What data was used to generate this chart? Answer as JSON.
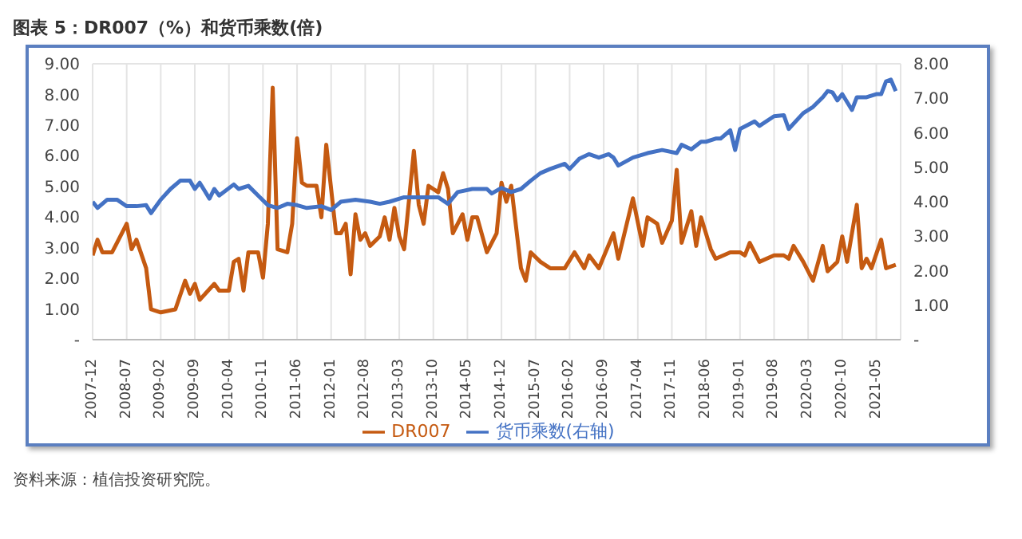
{
  "chart_data": {
    "type": "line",
    "title": "图表 5：DR007（%）和货币乘数(倍)",
    "annotations": [
      "资料来源：植信投资研究院。"
    ],
    "xlim": [
      "2007-12",
      "2021-10"
    ],
    "xticks": [
      "2007-12",
      "2008-07",
      "2009-02",
      "2009-09",
      "2010-04",
      "2010-11",
      "2011-06",
      "2012-01",
      "2012-08",
      "2013-03",
      "2013-10",
      "2014-05",
      "2014-12",
      "2015-07",
      "2016-02",
      "2016-09",
      "2017-04",
      "2017-11",
      "2018-06",
      "2019-01",
      "2019-08",
      "2020-03",
      "2020-10",
      "2021-05"
    ],
    "ylim": [
      0,
      9
    ],
    "yticks": [
      {
        "value": 0,
        "label": "-"
      },
      {
        "value": 1,
        "label": "1.00"
      },
      {
        "value": 2,
        "label": "2.00"
      },
      {
        "value": 3,
        "label": "3.00"
      },
      {
        "value": 4,
        "label": "4.00"
      },
      {
        "value": 5,
        "label": "5.00"
      },
      {
        "value": 6,
        "label": "6.00"
      },
      {
        "value": 7,
        "label": "7.00"
      },
      {
        "value": 8,
        "label": "8.00"
      },
      {
        "value": 9,
        "label": "9.00"
      }
    ],
    "y2lim": [
      0,
      8
    ],
    "y2ticks": [
      {
        "value": 0,
        "label": "-"
      },
      {
        "value": 1,
        "label": "1.00"
      },
      {
        "value": 2,
        "label": "2.00"
      },
      {
        "value": 3,
        "label": "3.00"
      },
      {
        "value": 4,
        "label": "4.00"
      },
      {
        "value": 5,
        "label": "5.00"
      },
      {
        "value": 6,
        "label": "6.00"
      },
      {
        "value": 7,
        "label": "7.00"
      },
      {
        "value": 8,
        "label": "8.00"
      }
    ],
    "grid": true,
    "legend": "bottom",
    "marker": "none",
    "line_style": "solid",
    "series": [
      {
        "name": "DR007",
        "color": "#c55a11",
        "x": [
          "2007-12",
          "2008-01",
          "2008-02",
          "2008-04",
          "2008-05",
          "2008-07",
          "2008-08",
          "2008-09",
          "2008-11",
          "2008-12",
          "2009-02",
          "2009-05",
          "2009-07",
          "2009-08",
          "2009-09",
          "2009-10",
          "2010-01",
          "2010-02",
          "2010-04",
          "2010-05",
          "2010-06",
          "2010-07",
          "2010-08",
          "2010-10",
          "2010-11",
          "2010-12",
          "2011-01",
          "2011-02",
          "2011-04",
          "2011-05",
          "2011-06",
          "2011-07",
          "2011-08",
          "2011-10",
          "2011-11",
          "2011-12",
          "2012-02",
          "2012-03",
          "2012-04",
          "2012-05",
          "2012-06",
          "2012-07",
          "2012-08",
          "2012-09",
          "2012-11",
          "2012-12",
          "2013-01",
          "2013-02",
          "2013-03",
          "2013-04",
          "2013-06",
          "2013-07",
          "2013-08",
          "2013-09",
          "2013-11",
          "2013-12",
          "2014-01",
          "2014-02",
          "2014-04",
          "2014-05",
          "2014-06",
          "2014-07",
          "2014-09",
          "2014-11",
          "2014-12",
          "2015-01",
          "2015-02",
          "2015-04",
          "2015-05",
          "2015-06",
          "2015-08",
          "2015-10",
          "2016-01",
          "2016-03",
          "2016-05",
          "2016-06",
          "2016-08",
          "2016-11",
          "2016-12",
          "2017-03",
          "2017-05",
          "2017-06",
          "2017-08",
          "2017-09",
          "2017-11",
          "2017-12",
          "2018-01",
          "2018-03",
          "2018-04",
          "2018-05",
          "2018-07",
          "2018-08",
          "2018-11",
          "2019-01",
          "2019-02",
          "2019-03",
          "2019-05",
          "2019-08",
          "2019-10",
          "2019-11",
          "2019-12",
          "2020-02",
          "2020-04",
          "2020-06",
          "2020-07",
          "2020-09",
          "2020-10",
          "2020-11",
          "2021-01",
          "2021-02",
          "2021-03",
          "2021-04",
          "2021-06",
          "2021-07",
          "2021-09"
        ],
        "values": [
          2.75,
          3.26,
          2.85,
          2.85,
          3.16,
          3.78,
          2.95,
          3.26,
          2.33,
          0.99,
          0.89,
          0.99,
          1.92,
          1.5,
          1.82,
          1.3,
          1.82,
          1.6,
          1.6,
          2.54,
          2.64,
          1.6,
          2.85,
          2.85,
          2.02,
          3.78,
          8.22,
          2.95,
          2.85,
          3.78,
          6.57,
          5.12,
          5.02,
          5.02,
          3.99,
          6.36,
          3.47,
          3.47,
          3.78,
          2.13,
          4.09,
          3.26,
          3.47,
          3.06,
          3.37,
          3.99,
          3.26,
          4.3,
          3.37,
          2.95,
          6.16,
          4.4,
          3.78,
          5.02,
          4.81,
          5.43,
          4.92,
          3.47,
          4.09,
          3.26,
          3.99,
          3.99,
          2.85,
          3.47,
          5.12,
          4.5,
          5.02,
          2.33,
          1.92,
          2.85,
          2.54,
          2.33,
          2.33,
          2.85,
          2.33,
          2.75,
          2.33,
          3.47,
          2.64,
          4.61,
          3.06,
          3.99,
          3.78,
          3.16,
          3.88,
          5.54,
          3.16,
          4.19,
          3.06,
          3.99,
          2.95,
          2.64,
          2.85,
          2.85,
          2.75,
          3.16,
          2.54,
          2.75,
          2.75,
          2.64,
          3.06,
          2.54,
          1.92,
          3.06,
          2.23,
          2.54,
          3.37,
          2.54,
          4.4,
          2.33,
          2.64,
          2.33,
          3.26,
          2.33,
          2.44
        ]
      },
      {
        "name": "货币乘数(右轴)",
        "color": "#4472c4",
        "axis": "y2",
        "x": [
          "2007-12",
          "2008-01",
          "2008-03",
          "2008-05",
          "2008-07",
          "2008-09",
          "2008-11",
          "2008-12",
          "2009-02",
          "2009-04",
          "2009-06",
          "2009-08",
          "2009-09",
          "2009-10",
          "2009-12",
          "2010-01",
          "2010-02",
          "2010-05",
          "2010-06",
          "2010-08",
          "2010-10",
          "2010-12",
          "2011-02",
          "2011-04",
          "2011-06",
          "2011-08",
          "2011-11",
          "2012-01",
          "2012-03",
          "2012-06",
          "2012-09",
          "2012-11",
          "2013-01",
          "2013-04",
          "2013-08",
          "2013-11",
          "2014-01",
          "2014-03",
          "2014-06",
          "2014-09",
          "2014-10",
          "2014-12",
          "2015-02",
          "2015-04",
          "2015-06",
          "2015-08",
          "2015-10",
          "2016-01",
          "2016-02",
          "2016-04",
          "2016-06",
          "2016-08",
          "2016-10",
          "2016-11",
          "2016-12",
          "2017-03",
          "2017-06",
          "2017-09",
          "2017-12",
          "2018-01",
          "2018-03",
          "2018-05",
          "2018-06",
          "2018-08",
          "2018-09",
          "2018-11",
          "2018-12",
          "2019-01",
          "2019-04",
          "2019-05",
          "2019-08",
          "2019-10",
          "2019-11",
          "2020-02",
          "2020-04",
          "2020-06",
          "2020-07",
          "2020-08",
          "2020-09",
          "2020-10",
          "2020-12",
          "2021-01",
          "2021-03",
          "2021-05",
          "2021-06",
          "2021-07",
          "2021-08",
          "2021-09"
        ],
        "values": [
          4.0,
          3.82,
          4.06,
          4.06,
          3.87,
          3.87,
          3.9,
          3.67,
          4.06,
          4.37,
          4.61,
          4.61,
          4.37,
          4.55,
          4.09,
          4.37,
          4.18,
          4.5,
          4.37,
          4.46,
          4.18,
          3.9,
          3.82,
          3.94,
          3.9,
          3.82,
          3.87,
          3.76,
          4.0,
          4.06,
          4.0,
          3.94,
          4.0,
          4.13,
          4.13,
          4.13,
          3.94,
          4.28,
          4.37,
          4.37,
          4.24,
          4.4,
          4.28,
          4.37,
          4.61,
          4.83,
          4.95,
          5.1,
          4.95,
          5.25,
          5.38,
          5.28,
          5.38,
          5.28,
          5.05,
          5.28,
          5.41,
          5.5,
          5.41,
          5.65,
          5.52,
          5.74,
          5.74,
          5.83,
          5.83,
          6.07,
          5.5,
          6.11,
          6.33,
          6.2,
          6.48,
          6.51,
          6.11,
          6.57,
          6.75,
          7.03,
          7.21,
          7.17,
          6.94,
          7.12,
          6.66,
          7.03,
          7.03,
          7.12,
          7.12,
          7.49,
          7.54,
          7.21
        ]
      }
    ]
  }
}
